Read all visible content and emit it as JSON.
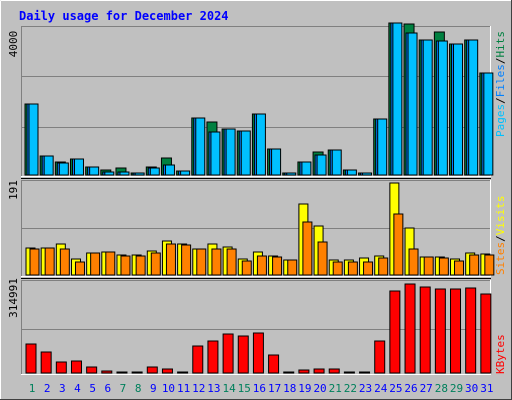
{
  "chart_data": [
    {
      "panel": "hits-files-pages",
      "type": "bar",
      "title": "Daily usage for December 2024",
      "categories": [
        "1",
        "2",
        "3",
        "4",
        "5",
        "6",
        "7",
        "8",
        "9",
        "10",
        "11",
        "12",
        "13",
        "14",
        "15",
        "16",
        "17",
        "18",
        "19",
        "20",
        "21",
        "22",
        "23",
        "24",
        "25",
        "26",
        "27",
        "28",
        "29",
        "30",
        "31"
      ],
      "weekend_categories": [
        "1",
        "7",
        "8",
        "14",
        "15",
        "21",
        "22",
        "28",
        "29"
      ],
      "ytick_label": "4000",
      "ylim": [
        0,
        4420
      ],
      "series": [
        {
          "name": "Hits",
          "color": "#008040",
          "values": [
            2120,
            550,
            380,
            470,
            230,
            150,
            200,
            50,
            250,
            490,
            110,
            1690,
            1570,
            1350,
            1300,
            1820,
            770,
            60,
            400,
            680,
            740,
            150,
            70,
            1650,
            4500,
            4480,
            4000,
            4240,
            3900,
            4000,
            3020
          ]
        },
        {
          "name": "Files",
          "color": "#0080FF",
          "values": [
            2120,
            550,
            350,
            470,
            230,
            100,
            100,
            50,
            200,
            290,
            110,
            1690,
            1270,
            1350,
            1300,
            1820,
            770,
            60,
            400,
            600,
            740,
            150,
            70,
            1650,
            4500,
            4200,
            4000,
            3970,
            3900,
            4000,
            3020
          ]
        },
        {
          "name": "Pages",
          "color": "#00C0FF",
          "values": [
            2120,
            550,
            350,
            470,
            230,
            100,
            100,
            50,
            200,
            290,
            110,
            1690,
            1270,
            1350,
            1300,
            1820,
            770,
            60,
            400,
            600,
            740,
            150,
            70,
            1650,
            4500,
            4200,
            4000,
            3970,
            3900,
            4000,
            3020
          ]
        }
      ],
      "legend": [
        "Pages",
        "Files",
        "Hits"
      ],
      "legend_colors": {
        "Pages": "#00C0FF",
        "Files": "#0080FF",
        "Hits": "#008040"
      }
    },
    {
      "panel": "visits-sites",
      "type": "bar",
      "categories": [
        "1",
        "2",
        "3",
        "4",
        "5",
        "6",
        "7",
        "8",
        "9",
        "10",
        "11",
        "12",
        "13",
        "14",
        "15",
        "16",
        "17",
        "18",
        "19",
        "20",
        "21",
        "22",
        "23",
        "24",
        "25",
        "26",
        "27",
        "28",
        "29",
        "30",
        "31"
      ],
      "ytick_label": "191",
      "ylim": [
        0,
        191
      ],
      "series": [
        {
          "name": "Visits",
          "color": "#FFFF00",
          "values": [
            56,
            57,
            65,
            33,
            45,
            47,
            42,
            41,
            50,
            70,
            64,
            54,
            64,
            58,
            33,
            48,
            39,
            32,
            147,
            102,
            32,
            32,
            35,
            39,
            190,
            97,
            38,
            38,
            34,
            45,
            44
          ]
        },
        {
          "name": "Sites",
          "color": "#FF8000",
          "values": [
            54,
            56,
            54,
            26,
            45,
            47,
            40,
            40,
            46,
            64,
            62,
            54,
            54,
            54,
            29,
            39,
            37,
            31,
            111,
            68,
            27,
            27,
            28,
            35,
            126,
            54,
            37,
            36,
            29,
            41,
            42
          ]
        }
      ],
      "legend": [
        "Sites",
        "Visits"
      ],
      "legend_colors": {
        "Sites": "#FF8000",
        "Visits": "#FFFF00"
      }
    },
    {
      "panel": "kbytes",
      "type": "bar",
      "categories": [
        "1",
        "2",
        "3",
        "4",
        "5",
        "6",
        "7",
        "8",
        "9",
        "10",
        "11",
        "12",
        "13",
        "14",
        "15",
        "16",
        "17",
        "18",
        "19",
        "20",
        "21",
        "22",
        "23",
        "24",
        "25",
        "26",
        "27",
        "28",
        "29",
        "30",
        "31"
      ],
      "ytick_label": "314991",
      "ylim": [
        0,
        314991
      ],
      "series": [
        {
          "name": "KBytes",
          "color": "#FF0000",
          "values": [
            103000,
            76000,
            38000,
            42000,
            20000,
            7000,
            5000,
            3000,
            20000,
            14000,
            3000,
            96000,
            113000,
            140000,
            133000,
            143000,
            64000,
            3000,
            12000,
            16000,
            13000,
            3000,
            3000,
            116000,
            295000,
            320000,
            307000,
            300000,
            302000,
            303000,
            284000
          ]
        }
      ],
      "legend": [
        "KBytes"
      ],
      "legend_colors": {
        "KBytes": "#FF0000"
      }
    }
  ],
  "colors": {
    "background": "#C0C0C0",
    "title": "#0000FF",
    "weekday_label": "#0000FF",
    "weekend_label": "#00805C",
    "gridline": "#808080",
    "bevel_light": "#FFFFFF",
    "bevel_dark": "#808080",
    "bevel_outer_dark": "#404040",
    "separator": "#000000"
  }
}
